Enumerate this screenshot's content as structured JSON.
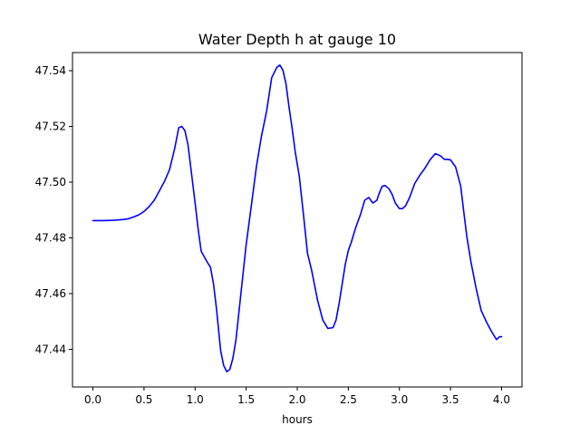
{
  "chart_data": {
    "type": "line",
    "title": "Water Depth h at gauge 10",
    "xlabel": "hours",
    "ylabel": "",
    "xlim": [
      -0.2,
      4.2
    ],
    "ylim": [
      47.4265,
      47.5465
    ],
    "xticks": [
      0.0,
      0.5,
      1.0,
      1.5,
      2.0,
      2.5,
      3.0,
      3.5,
      4.0
    ],
    "xtick_labels": [
      "0.0",
      "0.5",
      "1.0",
      "1.5",
      "2.0",
      "2.5",
      "3.0",
      "3.5",
      "4.0"
    ],
    "yticks": [
      47.44,
      47.46,
      47.48,
      47.5,
      47.52,
      47.54
    ],
    "ytick_labels": [
      "47.44",
      "47.46",
      "47.48",
      "47.50",
      "47.52",
      "47.54"
    ],
    "grid": false,
    "series": [
      {
        "color": "#0000ff",
        "x": [
          0.0,
          0.1,
          0.2,
          0.3,
          0.35,
          0.4,
          0.45,
          0.5,
          0.55,
          0.6,
          0.65,
          0.7,
          0.75,
          0.8,
          0.84,
          0.87,
          0.9,
          0.93,
          0.96,
          1.0,
          1.03,
          1.06,
          1.09,
          1.12,
          1.15,
          1.18,
          1.21,
          1.25,
          1.28,
          1.31,
          1.34,
          1.37,
          1.4,
          1.45,
          1.5,
          1.55,
          1.6,
          1.65,
          1.7,
          1.75,
          1.8,
          1.83,
          1.86,
          1.89,
          1.92,
          1.95,
          1.98,
          2.02,
          2.06,
          2.1,
          2.14,
          2.2,
          2.25,
          2.3,
          2.35,
          2.38,
          2.41,
          2.44,
          2.47,
          2.5,
          2.53,
          2.57,
          2.62,
          2.66,
          2.7,
          2.74,
          2.78,
          2.8,
          2.83,
          2.86,
          2.9,
          2.93,
          2.96,
          3.0,
          3.03,
          3.06,
          3.1,
          3.15,
          3.2,
          3.25,
          3.3,
          3.35,
          3.4,
          3.44,
          3.47,
          3.5,
          3.55,
          3.6,
          3.63,
          3.66,
          3.7,
          3.75,
          3.8,
          3.85,
          3.9,
          3.95,
          3.98,
          4.0
        ],
        "y": [
          47.4862,
          47.4862,
          47.4863,
          47.4866,
          47.4869,
          47.4875,
          47.4883,
          47.4895,
          47.4912,
          47.4935,
          47.4968,
          47.5003,
          47.5045,
          47.512,
          47.5195,
          47.52,
          47.5185,
          47.5135,
          47.5045,
          47.4925,
          47.483,
          47.4752,
          47.4732,
          47.4712,
          47.4695,
          47.4635,
          47.4545,
          47.4395,
          47.4342,
          47.432,
          47.4328,
          47.4368,
          47.4435,
          47.4605,
          47.4775,
          47.4915,
          47.5055,
          47.5165,
          47.5255,
          47.5375,
          47.5412,
          47.542,
          47.5402,
          47.5352,
          47.5268,
          47.5192,
          47.511,
          47.502,
          47.4885,
          47.4745,
          47.4685,
          47.4575,
          47.4505,
          47.4475,
          47.4478,
          47.4505,
          47.4565,
          47.4635,
          47.4705,
          47.4755,
          47.4785,
          47.4835,
          47.4885,
          47.4935,
          47.4945,
          47.4925,
          47.4935,
          47.4958,
          47.4985,
          47.4988,
          47.4975,
          47.4955,
          47.4925,
          47.4905,
          47.4905,
          47.4915,
          47.4945,
          47.4995,
          47.5025,
          47.505,
          47.508,
          47.5102,
          47.5095,
          47.5082,
          47.5082,
          47.508,
          47.5055,
          47.4985,
          47.4895,
          47.4805,
          47.4715,
          47.462,
          47.454,
          47.45,
          47.4465,
          47.4435,
          47.4445,
          47.4445
        ]
      }
    ]
  }
}
